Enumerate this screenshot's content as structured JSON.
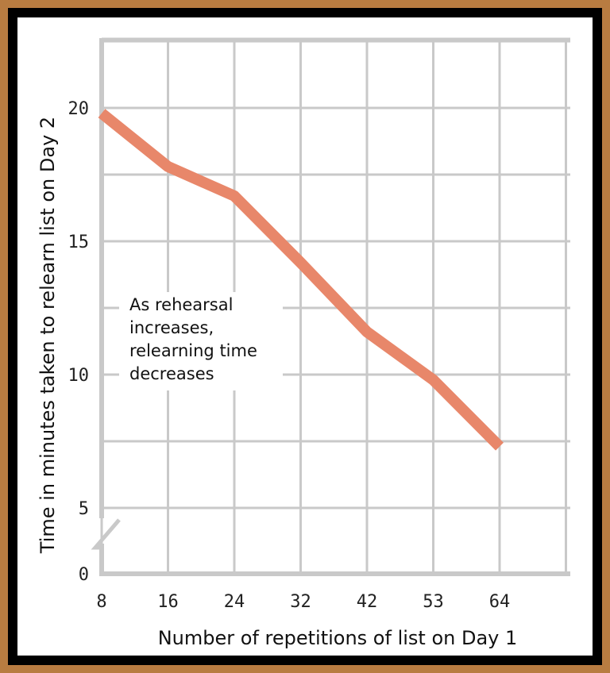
{
  "chart_data": {
    "type": "line",
    "categories": [
      "8",
      "16",
      "24",
      "32",
      "42",
      "53",
      "64"
    ],
    "series": [
      {
        "values": [
          19.8,
          17.8,
          16.7,
          14.2,
          11.6,
          9.8,
          7.3
        ]
      }
    ],
    "xlabel": "Number of repetitions of list on Day 1",
    "ylabel": "Time in minutes taken to relearn list on Day 2",
    "yticks": [
      0,
      5,
      10,
      15,
      20
    ],
    "ylim": [
      0,
      22.5
    ],
    "axis_break": "y between 0 and 5",
    "grid": true,
    "annotation": [
      "As rehearsal",
      "increases,",
      "relearning time",
      "decreases"
    ],
    "colors": {
      "line": "#e8876a",
      "grid": "#c9c9c9",
      "frame_outer": "#b87c41",
      "frame_inner": "#000000"
    }
  }
}
